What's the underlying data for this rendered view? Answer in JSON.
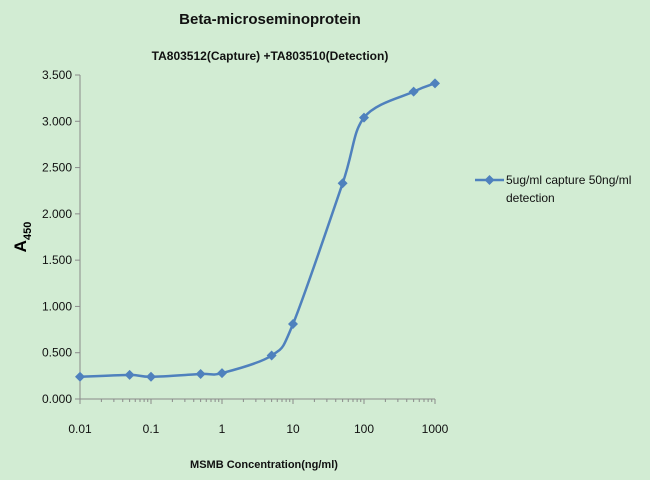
{
  "chart_data": {
    "type": "line",
    "title": "Beta-microseminoprotein",
    "subtitle": "TA803512(Capture) +TA803510(Detection)",
    "xlabel": "MSMB Concentration(ng/ml)",
    "ylabel_main": "A",
    "ylabel_sub": "450",
    "x_scale": "log",
    "xlim": [
      0.01,
      1000
    ],
    "ylim": [
      0,
      3.5
    ],
    "x_ticks": [
      0.01,
      0.1,
      1,
      10,
      100,
      1000
    ],
    "x_tick_labels": [
      "0.01",
      "0.1",
      "1",
      "10",
      "100",
      "1000"
    ],
    "y_ticks": [
      0,
      0.5,
      1,
      1.5,
      2,
      2.5,
      3,
      3.5
    ],
    "y_tick_labels": [
      "0.000",
      "0.500",
      "1.000",
      "1.500",
      "2.000",
      "2.500",
      "3.000",
      "3.500"
    ],
    "grid": false,
    "legend_position": "right",
    "series": [
      {
        "name": "5ug/ml capture 50ng/ml detection",
        "legend_lines": [
          "5ug/ml capture 50ng/ml",
          "detection"
        ],
        "color": "#4f81bd",
        "marker": "diamond",
        "x": [
          0.01,
          0.05,
          0.1,
          0.5,
          1,
          5,
          10,
          50,
          100,
          500,
          1000
        ],
        "y": [
          0.24,
          0.26,
          0.24,
          0.27,
          0.28,
          0.47,
          0.81,
          2.33,
          3.04,
          3.32,
          3.41
        ]
      }
    ]
  }
}
